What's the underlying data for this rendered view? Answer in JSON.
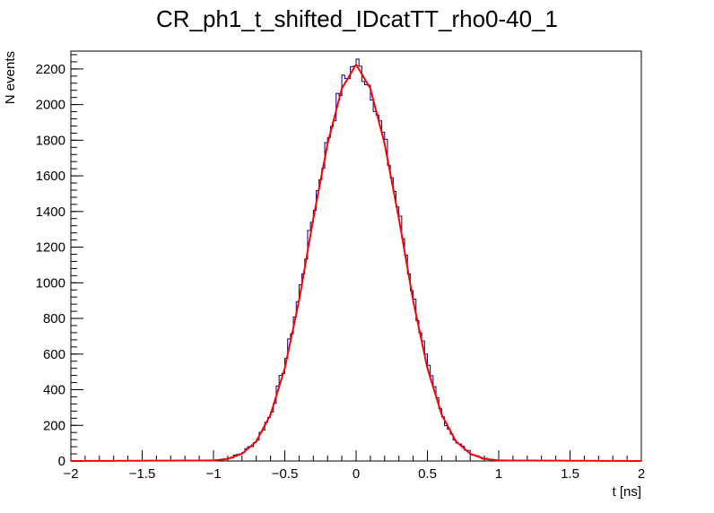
{
  "chart_data": {
    "type": "histogram",
    "title": "CR_ph1_t_shifted_IDcatTT_rho0-40_1",
    "xlabel": "t [ns]",
    "ylabel": "N events",
    "xlim": [
      -2,
      2
    ],
    "ylim": [
      0,
      2300
    ],
    "x_ticks": [
      -2,
      -1.5,
      -1,
      -0.5,
      0,
      0.5,
      1,
      1.5,
      2
    ],
    "x_tick_labels": [
      "−2",
      "−1.5",
      "−1",
      "−0.5",
      "0",
      "0.5",
      "1",
      "1.5",
      "2"
    ],
    "y_ticks": [
      0,
      200,
      400,
      600,
      800,
      1000,
      1200,
      1400,
      1600,
      1800,
      2000,
      2200
    ],
    "y_tick_labels": [
      "0",
      "200",
      "400",
      "600",
      "800",
      "1000",
      "1200",
      "1400",
      "1600",
      "1800",
      "2000",
      "2200"
    ],
    "grid": false,
    "legend": "none",
    "series": [
      {
        "kind": "histogram",
        "color": "#000080",
        "bin_width": 0.02,
        "x": [
          -1.0,
          -0.9,
          -0.8,
          -0.7,
          -0.6,
          -0.5,
          -0.4,
          -0.3,
          -0.2,
          -0.1,
          0.0,
          0.1,
          0.2,
          0.3,
          0.4,
          0.5,
          0.6,
          0.7,
          0.8,
          0.9,
          1.0
        ],
        "y": [
          2,
          12,
          45,
          110,
          260,
          540,
          930,
          1390,
          1800,
          2110,
          2240,
          2100,
          1800,
          1390,
          930,
          540,
          260,
          110,
          45,
          12,
          2
        ]
      },
      {
        "kind": "fit",
        "color": "#ff0000",
        "x": [
          -2.0,
          -1.0,
          -0.9,
          -0.8,
          -0.7,
          -0.6,
          -0.5,
          -0.4,
          -0.3,
          -0.2,
          -0.1,
          0.0,
          0.1,
          0.2,
          0.3,
          0.4,
          0.5,
          0.6,
          0.7,
          0.8,
          0.9,
          1.0,
          2.0
        ],
        "y": [
          0,
          3,
          12,
          40,
          110,
          260,
          520,
          900,
          1360,
          1780,
          2090,
          2225,
          2090,
          1780,
          1360,
          900,
          520,
          260,
          110,
          40,
          12,
          3,
          0
        ]
      }
    ]
  }
}
